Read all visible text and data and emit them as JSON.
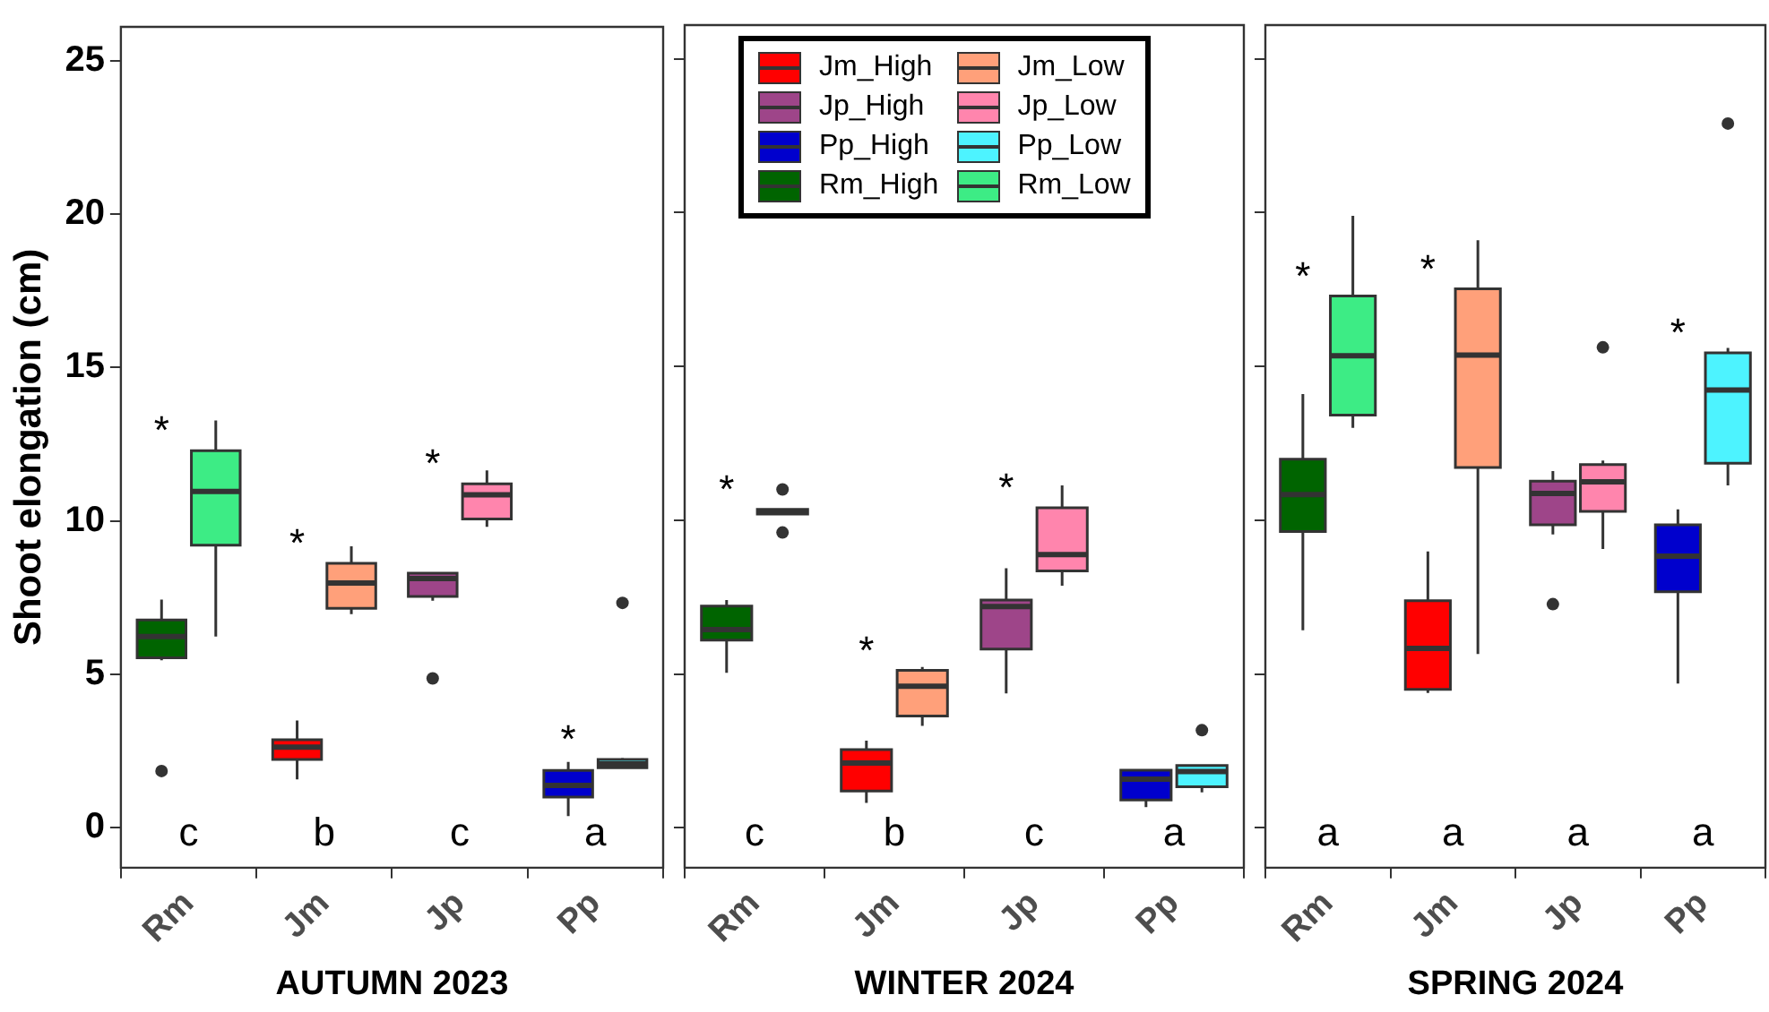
{
  "chart_data": [
    {
      "type": "box",
      "xlabel": "AUTUMN 2023",
      "ylabel": "Shoot elongation (cm)",
      "categories": [
        "Rm",
        "Jm",
        "Jp",
        "Pp"
      ],
      "ylim": [
        -1.3,
        26.1
      ],
      "yticks": [
        0,
        5,
        10,
        15,
        20,
        25
      ],
      "grid": false,
      "legend": false,
      "series": [
        {
          "color": "#ff0000",
          "boxes": [
            null,
            {
              "low": 1.58,
              "q1": 2.23,
              "median": 2.63,
              "q3": 2.87,
              "high": 3.5
            },
            null,
            null
          ]
        },
        {
          "color": "#ffa07a",
          "boxes": [
            null,
            {
              "low": 6.96,
              "q1": 7.15,
              "median": 7.98,
              "q3": 8.62,
              "high": 9.17
            },
            null,
            null
          ]
        },
        {
          "color": "#9e4589",
          "boxes": [
            null,
            null,
            {
              "low": 7.4,
              "q1": 7.54,
              "median": 8.12,
              "q3": 8.3,
              "high": 8.3,
              "outliers": [
                4.87
              ]
            },
            null
          ]
        },
        {
          "color": "#ff85ad",
          "boxes": [
            null,
            null,
            {
              "low": 9.81,
              "q1": 10.06,
              "median": 10.85,
              "q3": 11.21,
              "high": 11.65
            },
            null
          ]
        },
        {
          "color": "#0000cd",
          "boxes": [
            null,
            null,
            null,
            {
              "low": 0.38,
              "q1": 1.0,
              "median": 1.38,
              "q3": 1.87,
              "high": 2.15
            }
          ]
        },
        {
          "color": "#4df3ff",
          "boxes": [
            null,
            null,
            null,
            {
              "low": 1.96,
              "q1": 1.96,
              "median": 2.08,
              "q3": 2.23,
              "high": 2.27,
              "outliers": [
                7.33
              ]
            }
          ]
        },
        {
          "color": "#006400",
          "boxes": [
            {
              "low": 5.46,
              "q1": 5.54,
              "median": 6.23,
              "q3": 6.77,
              "high": 7.44,
              "outliers": [
                1.85
              ]
            },
            null,
            null,
            null
          ]
        },
        {
          "color": "#3dec85",
          "boxes": [
            {
              "low": 6.23,
              "q1": 9.21,
              "median": 10.96,
              "q3": 12.29,
              "high": 13.27
            },
            null,
            null,
            null
          ]
        }
      ],
      "annotations": [
        {
          "text": "*",
          "x": "Rm",
          "y": 12.29
        },
        {
          "text": "*",
          "x": "Jm",
          "y": 8.62
        },
        {
          "text": "*",
          "x": "Jp",
          "y": 11.21
        },
        {
          "text": "*",
          "x": "Pp",
          "y": 2.23
        },
        "c",
        "b",
        "c",
        "a"
      ]
    },
    {
      "type": "box",
      "xlabel": "WINTER 2024",
      "categories": [
        "Rm",
        "Jm",
        "Jp",
        "Pp"
      ],
      "ylim": [
        -1.3,
        26.1
      ],
      "yticks": [
        0,
        5,
        10,
        15,
        20,
        25
      ],
      "grid": false,
      "legend": "top",
      "tick_labels": "x",
      "series": [
        {
          "name": "Jm_High",
          "color": "#ff0000",
          "boxes": [
            null,
            {
              "low": 0.81,
              "q1": 1.19,
              "median": 2.1,
              "q3": 2.54,
              "high": 2.83
            },
            null,
            null
          ]
        },
        {
          "name": "Jm_Low",
          "color": "#ffa07a",
          "boxes": [
            null,
            {
              "low": 3.31,
              "q1": 3.63,
              "median": 4.6,
              "q3": 5.12,
              "high": 5.23
            },
            null,
            null
          ]
        },
        {
          "name": "Jp_High",
          "color": "#9e4589",
          "boxes": [
            null,
            null,
            {
              "low": 4.37,
              "q1": 5.81,
              "median": 7.19,
              "q3": 7.4,
              "high": 8.44
            },
            null
          ]
        },
        {
          "name": "Jp_Low",
          "color": "#ff85ad",
          "boxes": [
            null,
            null,
            {
              "low": 7.87,
              "q1": 8.35,
              "median": 8.88,
              "q3": 10.4,
              "high": 11.13
            },
            null
          ]
        },
        {
          "name": "Pp_High",
          "color": "#0000cd",
          "boxes": [
            null,
            null,
            null,
            {
              "low": 0.67,
              "q1": 0.9,
              "median": 1.58,
              "q3": 1.87,
              "high": 1.87
            }
          ]
        },
        {
          "name": "Pp_Low",
          "color": "#4df3ff",
          "boxes": [
            null,
            null,
            null,
            {
              "low": 1.15,
              "q1": 1.33,
              "median": 1.83,
              "q3": 2.02,
              "high": 2.02,
              "outliers": [
                3.17
              ]
            }
          ]
        },
        {
          "name": "Rm_High",
          "color": "#006400",
          "boxes": [
            {
              "low": 5.04,
              "q1": 6.1,
              "median": 6.44,
              "q3": 7.21,
              "high": 7.4
            },
            null,
            null,
            null
          ]
        },
        {
          "name": "Rm_Low",
          "color": "#3dec85",
          "boxes": [
            {
              "low": 10.2,
              "q1": 10.2,
              "median": 10.27,
              "q3": 10.35,
              "high": 10.35,
              "outliers": [
                11.0,
                9.6
              ]
            },
            null,
            null,
            null
          ]
        }
      ],
      "annotations": [
        {
          "text": "*",
          "x": "Rm",
          "y": 10.35
        },
        {
          "text": "*",
          "x": "Jm",
          "y": 5.12
        },
        {
          "text": "*",
          "x": "Jp",
          "y": 10.4
        },
        "c",
        "b",
        "c",
        "a"
      ]
    },
    {
      "type": "box",
      "xlabel": "SPRING 2024",
      "categories": [
        "Rm",
        "Jm",
        "Jp",
        "Pp"
      ],
      "ylim": [
        -1.3,
        26.1
      ],
      "yticks": [
        0,
        5,
        10,
        15,
        20,
        25
      ],
      "grid": false,
      "legend": false,
      "tick_labels": "x",
      "series": [
        {
          "color": "#ff0000",
          "boxes": [
            null,
            {
              "low": 4.38,
              "q1": 4.5,
              "median": 5.83,
              "q3": 7.38,
              "high": 8.98
            },
            null,
            null
          ]
        },
        {
          "color": "#ffa07a",
          "boxes": [
            null,
            {
              "low": 5.65,
              "q1": 11.71,
              "median": 15.37,
              "q3": 17.52,
              "high": 19.1
            },
            null,
            null
          ]
        },
        {
          "color": "#9e4589",
          "boxes": [
            null,
            null,
            {
              "low": 9.54,
              "q1": 9.85,
              "median": 10.87,
              "q3": 11.27,
              "high": 11.6,
              "outliers": [
                7.27
              ]
            },
            null
          ]
        },
        {
          "color": "#ff85ad",
          "boxes": [
            null,
            null,
            {
              "low": 9.06,
              "q1": 10.29,
              "median": 11.25,
              "q3": 11.81,
              "high": 11.94,
              "outliers": [
                15.62
              ]
            },
            null
          ]
        },
        {
          "color": "#0000cd",
          "boxes": [
            null,
            null,
            null,
            {
              "low": 4.69,
              "q1": 7.67,
              "median": 8.83,
              "q3": 9.85,
              "high": 10.35
            }
          ]
        },
        {
          "color": "#4df3ff",
          "boxes": [
            null,
            null,
            null,
            {
              "low": 11.13,
              "q1": 11.85,
              "median": 14.23,
              "q3": 15.44,
              "high": 15.6,
              "outliers": [
                22.9
              ]
            }
          ]
        },
        {
          "color": "#006400",
          "boxes": [
            {
              "low": 6.42,
              "q1": 9.63,
              "median": 10.83,
              "q3": 11.98,
              "high": 14.1
            },
            null,
            null,
            null
          ]
        },
        {
          "color": "#3dec85",
          "boxes": [
            {
              "low": 13.0,
              "q1": 13.42,
              "median": 15.35,
              "q3": 17.29,
              "high": 19.9
            },
            null,
            null,
            null
          ]
        }
      ],
      "annotations": [
        {
          "text": "*",
          "x": "Rm",
          "y": 17.29
        },
        {
          "text": "*",
          "x": "Jm",
          "y": 17.52
        },
        {
          "text": "*",
          "x": "Pp",
          "y": 15.44
        },
        "a",
        "a",
        "a",
        "a"
      ]
    }
  ]
}
